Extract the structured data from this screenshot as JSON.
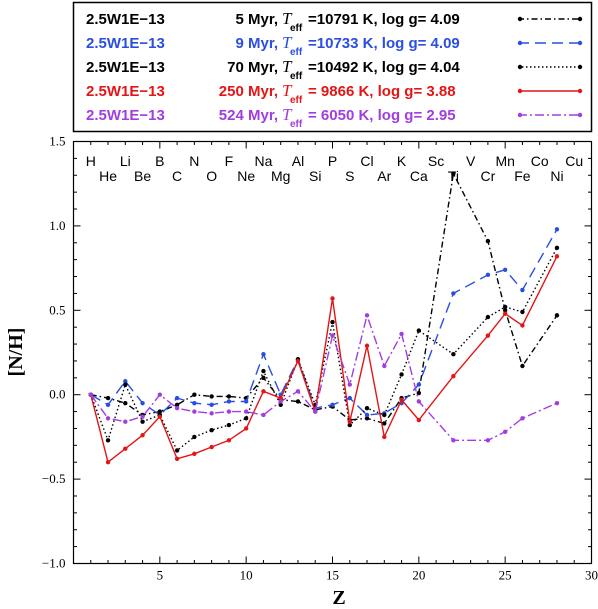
{
  "chart_data": {
    "type": "line",
    "xlabel": "Z",
    "ylabel": "[N/H]",
    "xlim": [
      0,
      30
    ],
    "ylim": [
      -1.0,
      1.5
    ],
    "x_ticks": [
      5,
      10,
      15,
      20,
      25,
      30
    ],
    "y_ticks": [
      -1.0,
      -0.5,
      0.0,
      0.5,
      1.0,
      1.5
    ],
    "x_tick_labels": [
      "5",
      "10",
      "15",
      "20",
      "25",
      "30"
    ],
    "y_tick_labels": [
      "−1.0",
      "−0.5",
      "0.0",
      "0.5",
      "1.0",
      "1.5"
    ],
    "elements_top": [
      "H",
      "Li",
      "B",
      "N",
      "F",
      "Na",
      "Al",
      "P",
      "Cl",
      "K",
      "Sc",
      "V",
      "Mn",
      "Co",
      "Cu"
    ],
    "elements_bottom": [
      "He",
      "Be",
      "C",
      "O",
      "Ne",
      "Mg",
      "Si",
      "S",
      "Ar",
      "Ca",
      "Ti",
      "Cr",
      "Fe",
      "Ni"
    ],
    "legend_position": "top",
    "series": [
      {
        "name": "2.5W1E−13",
        "age": "5 Myr,",
        "teff_label": "T",
        "teff_sub": "eff",
        "teff_value": "=10791 K, log g= 4.09",
        "color": "#000000",
        "dash": "6,3,1.5,3",
        "x": [
          1,
          2,
          3,
          4,
          5,
          6,
          7,
          8,
          9,
          10,
          11,
          12,
          13,
          14,
          15,
          16,
          17,
          18,
          19,
          20,
          22,
          24,
          25,
          26,
          28
        ],
        "y": [
          0.0,
          -0.02,
          -0.05,
          -0.12,
          -0.1,
          -0.06,
          0.0,
          -0.01,
          -0.01,
          -0.02,
          0.1,
          -0.03,
          -0.04,
          -0.09,
          -0.07,
          -0.15,
          -0.14,
          -0.17,
          -0.02,
          0.01,
          1.31,
          0.91,
          0.5,
          0.17,
          0.47
        ]
      },
      {
        "name": "2.5W1E−13",
        "age": "9 Myr,",
        "teff_label": "T",
        "teff_sub": "eff",
        "teff_value": "=10733 K, log g= 4.09",
        "color": "#2a4ee0",
        "dash": "11,6",
        "x": [
          1,
          2,
          3,
          4,
          5,
          6,
          7,
          8,
          9,
          10,
          11,
          12,
          13,
          14,
          15,
          16,
          17,
          18,
          19,
          20,
          22,
          24,
          25,
          26,
          28
        ],
        "y": [
          0.0,
          -0.06,
          0.08,
          -0.05,
          -0.12,
          -0.02,
          -0.05,
          -0.06,
          -0.04,
          -0.04,
          0.24,
          0.0,
          0.21,
          -0.08,
          -0.06,
          -0.02,
          -0.12,
          -0.11,
          -0.05,
          0.06,
          0.6,
          0.71,
          0.74,
          0.62,
          0.98
        ]
      },
      {
        "name": "2.5W1E−13",
        "age": "70 Myr,",
        "teff_label": "T",
        "teff_sub": "eff",
        "teff_value": "=10492 K, log g= 4.04",
        "color": "#000000",
        "dash": "1.5,2.5",
        "x": [
          1,
          2,
          3,
          4,
          5,
          6,
          7,
          8,
          9,
          10,
          11,
          12,
          13,
          14,
          15,
          16,
          17,
          18,
          19,
          20,
          22,
          24,
          25,
          26,
          28
        ],
        "y": [
          0.0,
          -0.27,
          0.06,
          -0.16,
          -0.12,
          -0.33,
          -0.25,
          -0.21,
          -0.18,
          -0.14,
          0.14,
          -0.06,
          0.21,
          -0.06,
          0.43,
          -0.18,
          -0.08,
          -0.12,
          0.12,
          0.38,
          0.24,
          0.46,
          0.52,
          0.49,
          0.87
        ]
      },
      {
        "name": "2.5W1E−13",
        "age": "250 Myr,",
        "teff_label": "T",
        "teff_sub": "eff",
        "teff_value": "= 9866 K, log g= 3.88",
        "color": "#e31515",
        "dash": "",
        "x": [
          1,
          2,
          3,
          4,
          5,
          6,
          7,
          8,
          9,
          10,
          11,
          12,
          13,
          14,
          15,
          16,
          17,
          18,
          19,
          20,
          22,
          24,
          25,
          26,
          28
        ],
        "y": [
          0.0,
          -0.4,
          -0.32,
          -0.24,
          -0.13,
          -0.38,
          -0.35,
          -0.31,
          -0.27,
          -0.2,
          0.02,
          -0.02,
          0.2,
          -0.1,
          0.57,
          -0.16,
          0.29,
          -0.25,
          -0.03,
          -0.15,
          0.11,
          0.35,
          0.48,
          0.41,
          0.82
        ]
      },
      {
        "name": "2.5W1E−13",
        "age": "524 Myr,",
        "teff_label": "T",
        "teff_sub": "eff",
        "teff_value": "= 6050 K, log g= 2.95",
        "color": "#a23de0",
        "dash": "9,3,2,3",
        "x": [
          1,
          2,
          3,
          4,
          5,
          6,
          7,
          8,
          9,
          10,
          11,
          12,
          13,
          14,
          15,
          16,
          17,
          18,
          19,
          20,
          22,
          24,
          25,
          26,
          28
        ],
        "y": [
          0.0,
          -0.14,
          -0.16,
          -0.13,
          0.0,
          -0.08,
          -0.1,
          -0.11,
          -0.1,
          -0.1,
          -0.12,
          -0.04,
          0.02,
          -0.1,
          0.35,
          0.06,
          0.47,
          0.17,
          0.36,
          -0.04,
          -0.27,
          -0.27,
          -0.22,
          -0.14,
          -0.05
        ]
      }
    ]
  }
}
